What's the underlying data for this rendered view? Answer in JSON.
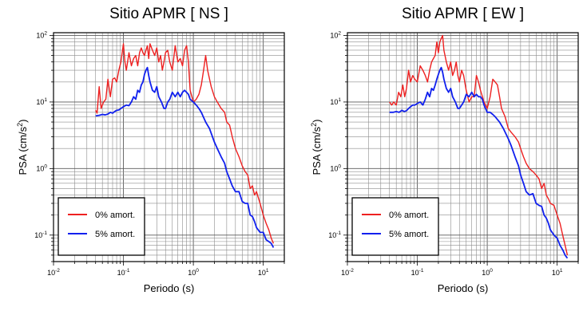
{
  "chart_data": [
    {
      "type": "line",
      "title": "Sitio APMR [ NS ]",
      "xlabel": "Periodo (s)",
      "ylabel_base": "PSA (cm/s",
      "ylabel_exp": "2",
      "ylabel_close": ")",
      "xscale": "log",
      "yscale": "log",
      "xlim": [
        0.01,
        20
      ],
      "ylim": [
        0.04,
        110
      ],
      "grid": true,
      "legend_placement": "lower-left",
      "x_tick_labels": [
        {
          "base": "10",
          "exp": "-2"
        },
        {
          "base": "10",
          "exp": "-1"
        },
        {
          "base": "10",
          "exp": "0"
        },
        {
          "base": "10",
          "exp": "1"
        }
      ],
      "y_tick_labels": [
        {
          "base": "10",
          "exp": "-1"
        },
        {
          "base": "10",
          "exp": "0"
        },
        {
          "base": "10",
          "exp": "1"
        },
        {
          "base": "10",
          "exp": "2"
        }
      ],
      "series": [
        {
          "name": "0% amort.",
          "color": "#ee2020",
          "x": [
            0.04,
            0.042,
            0.045,
            0.048,
            0.052,
            0.056,
            0.06,
            0.065,
            0.07,
            0.075,
            0.08,
            0.086,
            0.092,
            0.1,
            0.105,
            0.11,
            0.12,
            0.13,
            0.14,
            0.15,
            0.16,
            0.17,
            0.18,
            0.19,
            0.2,
            0.21,
            0.22,
            0.23,
            0.24,
            0.26,
            0.28,
            0.3,
            0.32,
            0.34,
            0.36,
            0.38,
            0.4,
            0.43,
            0.46,
            0.5,
            0.55,
            0.6,
            0.65,
            0.7,
            0.75,
            0.8,
            0.85,
            0.9,
            1.0,
            1.1,
            1.2,
            1.3,
            1.4,
            1.5,
            1.6,
            1.8,
            2.0,
            2.2,
            2.5,
            2.8,
            3.0,
            3.3,
            3.6,
            4.0,
            4.5,
            5.0,
            5.5,
            6.0,
            6.5,
            7.0,
            7.5,
            8.0,
            9.0,
            10.0,
            11.0,
            12.0,
            13.0,
            14.0
          ],
          "y": [
            7.5,
            6.8,
            17,
            8,
            10,
            11,
            22,
            12,
            22,
            23,
            20,
            30,
            40,
            75,
            40,
            30,
            55,
            35,
            45,
            50,
            35,
            55,
            65,
            55,
            50,
            60,
            70,
            45,
            75,
            60,
            50,
            65,
            40,
            50,
            30,
            40,
            55,
            60,
            40,
            30,
            70,
            40,
            45,
            35,
            60,
            70,
            40,
            15,
            10,
            11,
            13,
            18,
            30,
            50,
            30,
            17,
            12,
            10,
            8,
            7,
            5,
            4.5,
            3,
            2,
            1.5,
            1.1,
            0.9,
            0.8,
            0.5,
            0.55,
            0.4,
            0.45,
            0.3,
            0.2,
            0.15,
            0.12,
            0.09,
            0.075
          ]
        },
        {
          "name": "5% amort.",
          "color": "#1020ee",
          "x": [
            0.04,
            0.045,
            0.05,
            0.055,
            0.06,
            0.065,
            0.07,
            0.075,
            0.08,
            0.086,
            0.092,
            0.1,
            0.11,
            0.12,
            0.13,
            0.14,
            0.15,
            0.16,
            0.17,
            0.18,
            0.19,
            0.2,
            0.21,
            0.22,
            0.23,
            0.24,
            0.26,
            0.28,
            0.3,
            0.32,
            0.35,
            0.38,
            0.4,
            0.43,
            0.46,
            0.5,
            0.55,
            0.6,
            0.65,
            0.7,
            0.75,
            0.8,
            0.85,
            0.9,
            1.0,
            1.1,
            1.2,
            1.3,
            1.5,
            1.7,
            2.0,
            2.2,
            2.5,
            2.8,
            3.0,
            3.3,
            3.6,
            4.0,
            4.5,
            5.0,
            5.5,
            6.0,
            6.5,
            7.0,
            7.5,
            8.0,
            9.0,
            10.0,
            11.0,
            12.0,
            13.0,
            14.0
          ],
          "y": [
            6.2,
            6.3,
            6.5,
            6.4,
            6.6,
            7,
            6.8,
            7.2,
            7.5,
            7.6,
            8,
            8.5,
            9,
            8.8,
            10,
            12,
            11,
            15,
            14,
            18,
            20,
            26,
            30,
            33,
            25,
            20,
            15,
            14,
            17,
            12,
            10,
            8,
            8,
            10,
            11,
            14,
            12,
            14,
            12,
            14,
            15,
            14,
            13,
            11,
            10,
            9,
            8,
            7,
            5,
            4,
            2.5,
            2,
            1.5,
            1.2,
            0.9,
            0.7,
            0.55,
            0.45,
            0.45,
            0.32,
            0.3,
            0.3,
            0.2,
            0.19,
            0.16,
            0.13,
            0.11,
            0.11,
            0.085,
            0.08,
            0.075,
            0.065
          ]
        }
      ]
    },
    {
      "type": "line",
      "title": "Sitio APMR [ EW ]",
      "xlabel": "Periodo (s)",
      "ylabel_base": "PSA (cm/s",
      "ylabel_exp": "2",
      "ylabel_close": ")",
      "xscale": "log",
      "yscale": "log",
      "xlim": [
        0.01,
        20
      ],
      "ylim": [
        0.04,
        110
      ],
      "grid": true,
      "legend_placement": "lower-left",
      "x_tick_labels": [
        {
          "base": "10",
          "exp": "-2"
        },
        {
          "base": "10",
          "exp": "-1"
        },
        {
          "base": "10",
          "exp": "0"
        },
        {
          "base": "10",
          "exp": "1"
        }
      ],
      "y_tick_labels": [
        {
          "base": "10",
          "exp": "-1"
        },
        {
          "base": "10",
          "exp": "0"
        },
        {
          "base": "10",
          "exp": "1"
        },
        {
          "base": "10",
          "exp": "2"
        }
      ],
      "series": [
        {
          "name": "0% amort.",
          "color": "#ee2020",
          "x": [
            0.04,
            0.043,
            0.046,
            0.05,
            0.054,
            0.058,
            0.062,
            0.066,
            0.07,
            0.075,
            0.08,
            0.086,
            0.092,
            0.1,
            0.11,
            0.12,
            0.13,
            0.14,
            0.15,
            0.16,
            0.17,
            0.18,
            0.19,
            0.2,
            0.21,
            0.22,
            0.23,
            0.24,
            0.26,
            0.28,
            0.3,
            0.32,
            0.34,
            0.36,
            0.38,
            0.4,
            0.43,
            0.46,
            0.5,
            0.55,
            0.6,
            0.65,
            0.7,
            0.75,
            0.8,
            0.9,
            1.0,
            1.1,
            1.2,
            1.3,
            1.4,
            1.5,
            1.6,
            1.8,
            2.0,
            2.2,
            2.5,
            2.8,
            3.0,
            3.3,
            3.6,
            4.0,
            4.5,
            5.0,
            5.5,
            6.0,
            6.5,
            7.0,
            7.5,
            8.0,
            9.0,
            10.0,
            11.0,
            12.0,
            13.0,
            14.0
          ],
          "y": [
            10,
            9,
            10,
            9,
            14,
            12,
            18,
            12,
            16,
            30,
            20,
            25,
            22,
            20,
            35,
            30,
            25,
            20,
            30,
            40,
            45,
            50,
            80,
            55,
            80,
            90,
            100,
            60,
            40,
            30,
            40,
            25,
            30,
            40,
            25,
            20,
            30,
            25,
            15,
            10,
            12,
            12,
            25,
            20,
            15,
            10,
            8,
            12,
            22,
            20,
            18,
            12,
            8,
            6,
            4,
            3.5,
            3,
            2.5,
            2,
            1.5,
            1.2,
            1,
            0.9,
            0.8,
            0.7,
            0.5,
            0.6,
            0.4,
            0.35,
            0.3,
            0.28,
            0.2,
            0.15,
            0.1,
            0.07,
            0.05
          ]
        },
        {
          "name": "5% amort.",
          "color": "#1020ee",
          "x": [
            0.04,
            0.045,
            0.05,
            0.055,
            0.06,
            0.065,
            0.07,
            0.075,
            0.08,
            0.086,
            0.092,
            0.1,
            0.11,
            0.12,
            0.13,
            0.14,
            0.15,
            0.16,
            0.17,
            0.18,
            0.19,
            0.2,
            0.21,
            0.22,
            0.23,
            0.24,
            0.26,
            0.28,
            0.3,
            0.32,
            0.35,
            0.38,
            0.4,
            0.43,
            0.46,
            0.5,
            0.55,
            0.6,
            0.65,
            0.7,
            0.75,
            0.8,
            0.85,
            0.9,
            1.0,
            1.1,
            1.2,
            1.3,
            1.5,
            1.7,
            2.0,
            2.2,
            2.5,
            2.8,
            3.0,
            3.3,
            3.6,
            4.0,
            4.5,
            5.0,
            5.5,
            6.0,
            6.5,
            7.0,
            7.5,
            8.0,
            9.0,
            10.0,
            11.0,
            12.0,
            13.0,
            14.0
          ],
          "y": [
            7,
            7,
            7.2,
            7,
            7.5,
            7.2,
            7.4,
            8,
            8.5,
            9,
            9,
            9.5,
            10,
            9,
            11,
            14,
            12,
            16,
            15,
            18,
            22,
            26,
            30,
            33,
            28,
            22,
            16,
            14,
            16,
            12,
            10,
            8,
            8,
            9,
            10,
            13,
            12,
            14,
            12,
            13,
            12,
            12,
            11,
            9,
            7,
            7,
            6.5,
            6,
            5,
            4,
            2.8,
            2.2,
            1.5,
            1.1,
            0.8,
            0.6,
            0.45,
            0.4,
            0.42,
            0.3,
            0.28,
            0.27,
            0.2,
            0.18,
            0.15,
            0.12,
            0.1,
            0.09,
            0.07,
            0.06,
            0.05,
            0.045
          ]
        }
      ]
    }
  ]
}
